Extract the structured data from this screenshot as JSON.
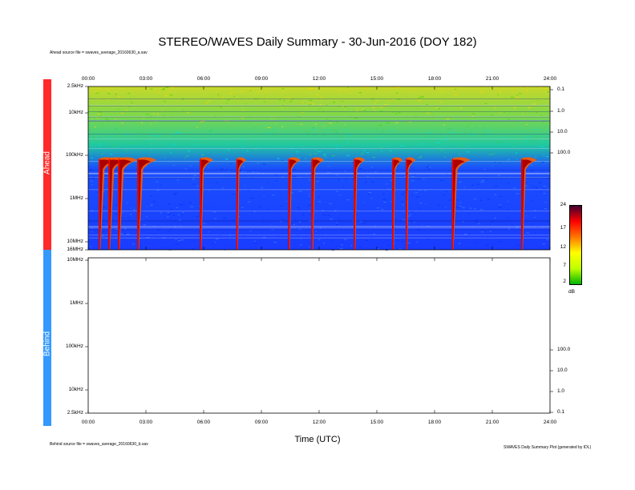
{
  "chart_data": {
    "type": "heatmap",
    "title": "STEREO/WAVES Daily Summary - 30-Jun-2016 (DOY 182)",
    "xlabel": "Time (UTC)",
    "x_ticks": [
      "00:00",
      "03:00",
      "06:00",
      "09:00",
      "12:00",
      "15:00",
      "18:00",
      "21:00",
      "24:00"
    ],
    "xlim_hours": [
      0,
      24
    ],
    "colorbar": {
      "label": "dB",
      "ticks": [
        "24",
        "17",
        "12",
        "7",
        "2"
      ],
      "range": [
        2,
        24
      ]
    },
    "panels": [
      {
        "spacecraft": "Ahead",
        "color": "#ff2a2a",
        "source_note": "Ahead source file = swaves_average_20160630_a.sav",
        "y_ticks": [
          "2.5kHz",
          "10kHz",
          "100kHz",
          "1MHz",
          "10MHz",
          "16MHz"
        ],
        "right_ticks": [
          "0.1",
          "1.0",
          "10.0",
          "100.0"
        ],
        "data_available": true,
        "radio_bursts": [
          {
            "start_hour": 0.55,
            "intensity": 1.0
          },
          {
            "start_hour": 1.05,
            "intensity": 1.0
          },
          {
            "start_hour": 1.55,
            "intensity": 1.0
          },
          {
            "start_hour": 2.55,
            "intensity": 1.0
          },
          {
            "start_hour": 5.8,
            "intensity": 0.6
          },
          {
            "start_hour": 7.7,
            "intensity": 0.35
          },
          {
            "start_hour": 10.4,
            "intensity": 0.5
          },
          {
            "start_hour": 11.6,
            "intensity": 0.55
          },
          {
            "start_hour": 13.8,
            "intensity": 0.45
          },
          {
            "start_hour": 15.8,
            "intensity": 0.4
          },
          {
            "start_hour": 16.5,
            "intensity": 0.35
          },
          {
            "start_hour": 18.9,
            "intensity": 0.95
          },
          {
            "start_hour": 22.5,
            "intensity": 0.75
          }
        ]
      },
      {
        "spacecraft": "Behind",
        "color": "#2a8cff",
        "source_note": "Behind source file = swaves_average_20160630_b.sav",
        "y_ticks": [
          "10MHz",
          "1MHz",
          "100kHz",
          "10kHz",
          "2.5kHz"
        ],
        "right_ticks": [
          "100.0",
          "10.0",
          "1.0",
          "0.1"
        ],
        "data_available": false,
        "radio_bursts": []
      }
    ],
    "footer_note": "SWAVES Daily Summary Plot (generated by IDL)"
  }
}
